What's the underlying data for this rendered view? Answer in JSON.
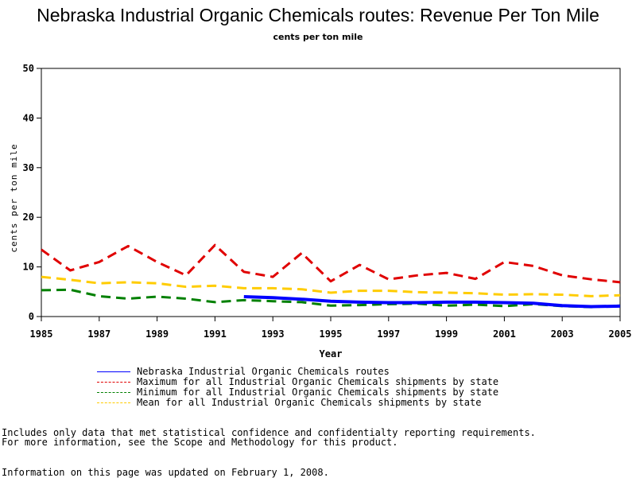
{
  "chart_data": {
    "type": "line",
    "title": "Nebraska Industrial Organic Chemicals routes: Revenue Per Ton Mile",
    "subtitle": "cents per ton mile",
    "xlabel": "Year",
    "ylabel": "cents per ton mile",
    "xlim": [
      1985,
      2005
    ],
    "ylim": [
      0,
      50
    ],
    "xticks": [
      "1985",
      "1987",
      "1989",
      "1991",
      "1993",
      "1995",
      "1997",
      "1999",
      "2001",
      "2003",
      "2005"
    ],
    "yticks": [
      "0",
      "10",
      "20",
      "30",
      "40",
      "50"
    ],
    "grid": false,
    "legend_position": "bottom",
    "series": [
      {
        "name": "Nebraska Industrial Organic Chemicals routes",
        "color": "#0000ff",
        "style": "solid",
        "x": [
          1992,
          1993,
          1994,
          1995,
          1996,
          1997,
          1998,
          1999,
          2000,
          2001,
          2002,
          2003,
          2004,
          2005
        ],
        "values": [
          4.0,
          3.8,
          3.5,
          3.1,
          2.9,
          2.8,
          2.8,
          2.9,
          2.9,
          2.8,
          2.7,
          2.2,
          2.0,
          2.1
        ]
      },
      {
        "name": "Maximum for all Industrial Organic Chemicals shipments by state",
        "color": "#e00000",
        "style": "dashed",
        "x": [
          1985,
          1986,
          1987,
          1988,
          1989,
          1990,
          1991,
          1992,
          1993,
          1994,
          1995,
          1996,
          1997,
          1998,
          1999,
          2000,
          2001,
          2002,
          2003,
          2004,
          2005
        ],
        "values": [
          13.5,
          9.3,
          11.0,
          14.2,
          11.0,
          8.3,
          14.4,
          9.0,
          8.0,
          12.8,
          7.1,
          10.4,
          7.5,
          8.3,
          8.8,
          7.6,
          11.0,
          10.2,
          8.3,
          7.5,
          6.9
        ]
      },
      {
        "name": "Minimum for all Industrial Organic Chemicals shipments by state",
        "color": "#008000",
        "style": "dashed",
        "x": [
          1985,
          1986,
          1987,
          1988,
          1989,
          1990,
          1991,
          1992,
          1993,
          1994,
          1995,
          1996,
          1997,
          1998,
          1999,
          2000,
          2001,
          2002,
          2003,
          2004,
          2005
        ],
        "values": [
          5.3,
          5.4,
          4.1,
          3.6,
          4.0,
          3.6,
          2.9,
          3.3,
          3.1,
          2.9,
          2.2,
          2.3,
          2.5,
          2.6,
          2.2,
          2.4,
          2.1,
          2.5,
          2.1,
          1.9,
          2.2
        ]
      },
      {
        "name": "Mean for all Industrial Organic Chemicals shipments by state",
        "color": "#ffcc00",
        "style": "dashed",
        "x": [
          1985,
          1986,
          1987,
          1988,
          1989,
          1990,
          1991,
          1992,
          1993,
          1994,
          1995,
          1996,
          1997,
          1998,
          1999,
          2000,
          2001,
          2002,
          2003,
          2004,
          2005
        ],
        "values": [
          8.0,
          7.4,
          6.7,
          6.9,
          6.7,
          6.0,
          6.2,
          5.7,
          5.7,
          5.5,
          4.8,
          5.2,
          5.2,
          4.9,
          4.8,
          4.7,
          4.4,
          4.5,
          4.4,
          4.1,
          4.3
        ]
      }
    ]
  },
  "notes": {
    "line1": "Includes only data that met statistical confidence and confidentialty reporting requirements.",
    "line2": "For more information, see the Scope and Methodology for this product.",
    "updated": "Information on this page was updated on February 1, 2008."
  }
}
